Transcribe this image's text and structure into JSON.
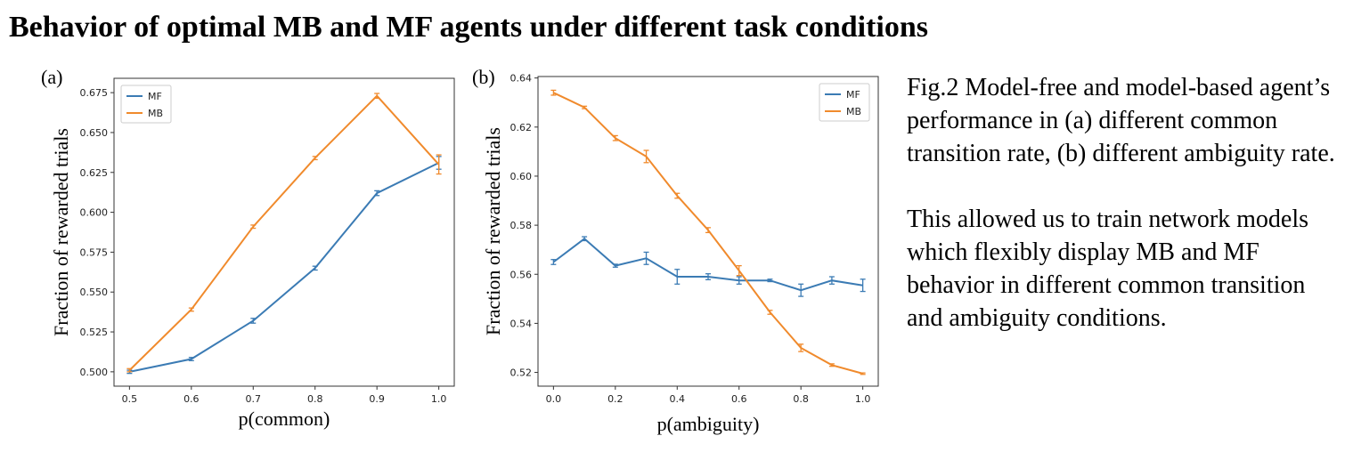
{
  "figure_title": "Behavior of optimal MB and MF agents under different task conditions",
  "caption": {
    "para1": "Fig.2 Model-free and model-based agent’s  performance in (a) different common transition rate, (b) different ambiguity rate.",
    "para2": "This allowed us to train network models which flexibly display MB and MF behavior in different common transition and ambiguity conditions."
  },
  "colors": {
    "MF": "#3b7bb4",
    "MB": "#f08a2c"
  },
  "chart_data": [
    {
      "type": "line",
      "panel_label": "(a)",
      "xlabel": "p(common)",
      "ylabel": "Fraction of rewarded trials",
      "x": [
        0.5,
        0.6,
        0.7,
        0.8,
        0.9,
        1.0
      ],
      "xlim": [
        0.475,
        1.025
      ],
      "ylim": [
        0.491,
        0.684
      ],
      "xticks": [
        0.5,
        0.6,
        0.7,
        0.8,
        0.9,
        1.0
      ],
      "xtick_labels": [
        "0.5",
        "0.6",
        "0.7",
        "0.8",
        "0.9",
        "1.0"
      ],
      "yticks": [
        0.5,
        0.525,
        0.55,
        0.575,
        0.6,
        0.625,
        0.65,
        0.675
      ],
      "ytick_labels": [
        "0.500",
        "0.525",
        "0.550",
        "0.575",
        "0.600",
        "0.625",
        "0.650",
        "0.675"
      ],
      "legend": "top-left",
      "series": [
        {
          "name": "MF",
          "values": [
            0.5,
            0.508,
            0.532,
            0.565,
            0.612,
            0.631
          ],
          "errors": [
            0.001,
            0.001,
            0.0015,
            0.0012,
            0.0015,
            0.004
          ]
        },
        {
          "name": "MB",
          "values": [
            0.501,
            0.539,
            0.591,
            0.634,
            0.673,
            0.63
          ],
          "errors": [
            0.001,
            0.001,
            0.001,
            0.001,
            0.0015,
            0.006
          ]
        }
      ]
    },
    {
      "type": "line",
      "panel_label": "(b)",
      "xlabel": "p(ambiguity)",
      "ylabel": "Fraction of rewarded trials",
      "x": [
        0.0,
        0.1,
        0.2,
        0.3,
        0.4,
        0.5,
        0.6,
        0.7,
        0.8,
        0.9,
        1.0
      ],
      "xlim": [
        -0.05,
        1.05
      ],
      "ylim": [
        0.5144,
        0.6406
      ],
      "xticks": [
        0.0,
        0.2,
        0.4,
        0.6,
        0.8,
        1.0
      ],
      "xtick_labels": [
        "0.0",
        "0.2",
        "0.4",
        "0.6",
        "0.8",
        "1.0"
      ],
      "yticks": [
        0.52,
        0.54,
        0.56,
        0.58,
        0.6,
        0.62,
        0.64
      ],
      "ytick_labels": [
        "0.52",
        "0.54",
        "0.56",
        "0.58",
        "0.60",
        "0.62",
        "0.64"
      ],
      "legend": "top-right",
      "series": [
        {
          "name": "MF",
          "values": [
            0.565,
            0.5745,
            0.5635,
            0.5665,
            0.559,
            0.559,
            0.5575,
            0.5575,
            0.5535,
            0.5575,
            0.5555
          ],
          "errors": [
            0.001,
            0.0008,
            0.0006,
            0.0025,
            0.003,
            0.0012,
            0.0015,
            0.0005,
            0.0025,
            0.0015,
            0.0025
          ]
        },
        {
          "name": "MB",
          "values": [
            0.634,
            0.628,
            0.6155,
            0.608,
            0.592,
            0.578,
            0.5615,
            0.5445,
            0.53,
            0.523,
            0.5195
          ],
          "errors": [
            0.001,
            0.0005,
            0.001,
            0.0025,
            0.001,
            0.001,
            0.002,
            0.0008,
            0.0015,
            0.0005,
            0.0003
          ]
        }
      ]
    }
  ]
}
